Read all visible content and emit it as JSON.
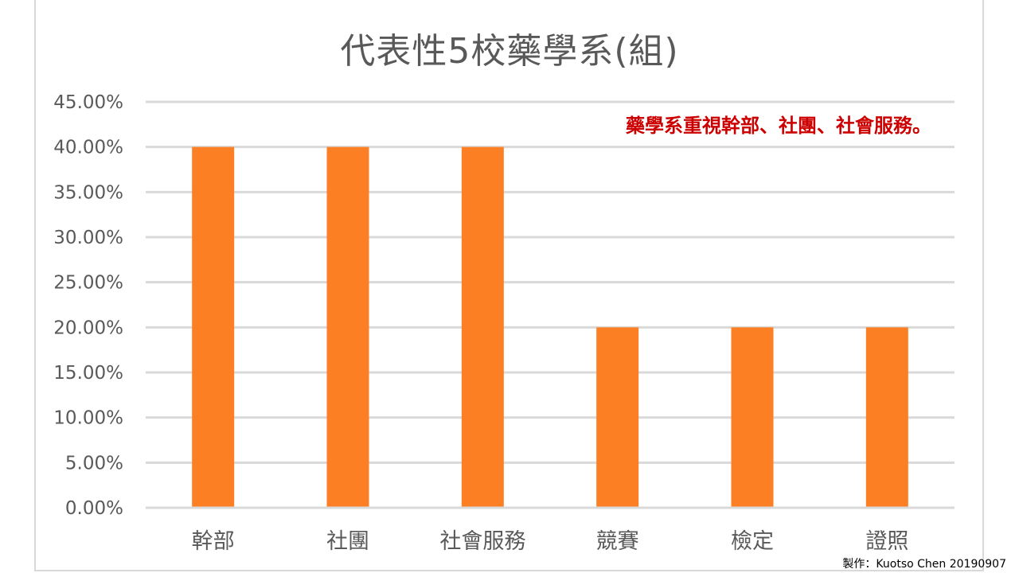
{
  "chart_data": {
    "type": "bar",
    "title": "代表性5校藥學系(組)",
    "categories": [
      "幹部",
      "社團",
      "社會服務",
      "競賽",
      "檢定",
      "證照"
    ],
    "values": [
      0.4,
      0.4,
      0.4,
      0.2,
      0.2,
      0.2
    ],
    "ylim": [
      0,
      0.45
    ],
    "yticks": [
      0,
      0.05,
      0.1,
      0.15,
      0.2,
      0.25,
      0.3,
      0.35,
      0.4,
      0.45
    ],
    "ytick_labels": [
      "0.00%",
      "5.00%",
      "10.00%",
      "15.00%",
      "20.00%",
      "25.00%",
      "30.00%",
      "35.00%",
      "40.00%",
      "45.00%"
    ],
    "grid": true,
    "bar_color": "#fd7f23",
    "annotation": "藥學系重視幹部、社團、社會服務。"
  },
  "footer": {
    "credit": "製作：Kuotso Chen 20190907"
  }
}
